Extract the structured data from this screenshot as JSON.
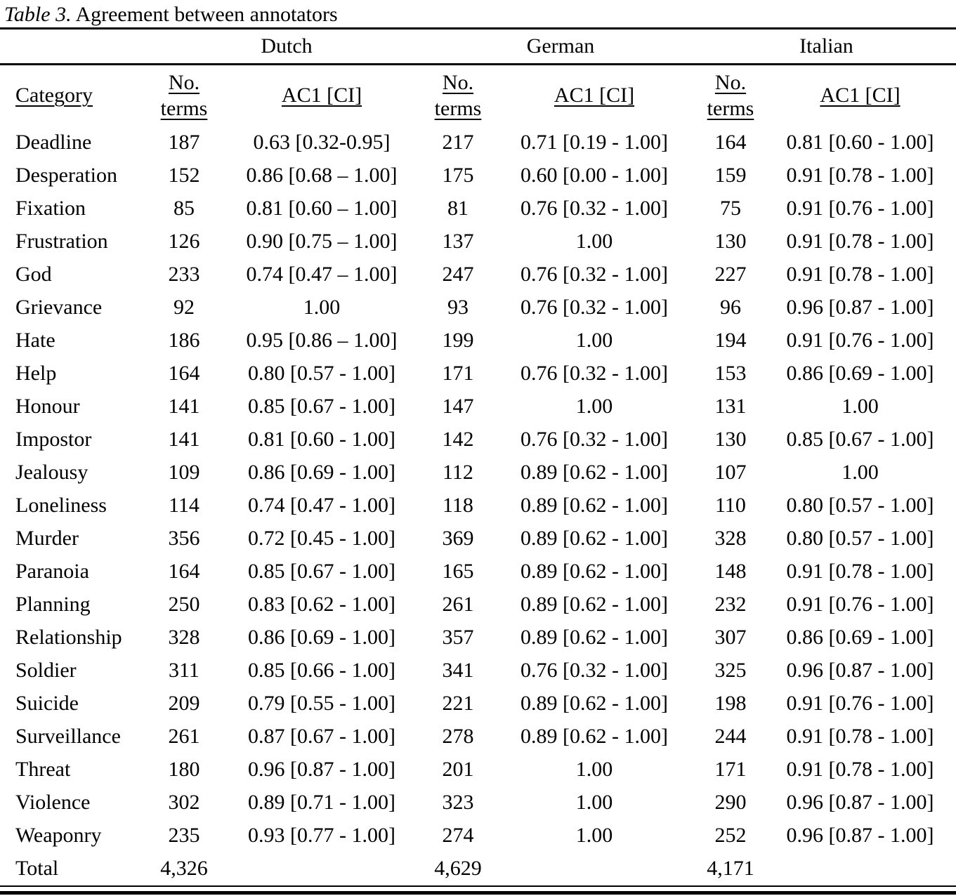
{
  "title": {
    "prefix": "Table 3.",
    "text": " Agreement between annotators"
  },
  "table": {
    "language_groups": [
      "Dutch",
      "German",
      "Italian"
    ],
    "headers": {
      "category": "Category",
      "no_terms": "No.\nterms",
      "ac1": "AC1 [CI]"
    },
    "rows": [
      {
        "category": "Deadline",
        "nl_terms": "187",
        "nl_ac1": "0.63 [0.32-0.95]",
        "de_terms": "217",
        "de_ac1": "0.71 [0.19 - 1.00]",
        "it_terms": "164",
        "it_ac1": "0.81 [0.60 - 1.00]"
      },
      {
        "category": "Desperation",
        "nl_terms": "152",
        "nl_ac1": "0.86 [0.68 – 1.00]",
        "de_terms": "175",
        "de_ac1": "0.60 [0.00 - 1.00]",
        "it_terms": "159",
        "it_ac1": "0.91 [0.78 - 1.00]"
      },
      {
        "category": "Fixation",
        "nl_terms": "85",
        "nl_ac1": "0.81 [0.60 – 1.00]",
        "de_terms": "81",
        "de_ac1": "0.76 [0.32 - 1.00]",
        "it_terms": "75",
        "it_ac1": "0.91 [0.76 - 1.00]"
      },
      {
        "category": "Frustration",
        "nl_terms": "126",
        "nl_ac1": "0.90 [0.75 – 1.00]",
        "de_terms": "137",
        "de_ac1": "1.00",
        "it_terms": "130",
        "it_ac1": "0.91 [0.78 - 1.00]"
      },
      {
        "category": "God",
        "nl_terms": "233",
        "nl_ac1": "0.74 [0.47 – 1.00]",
        "de_terms": "247",
        "de_ac1": "0.76 [0.32 - 1.00]",
        "it_terms": "227",
        "it_ac1": "0.91 [0.78 - 1.00]"
      },
      {
        "category": "Grievance",
        "nl_terms": "92",
        "nl_ac1": "1.00",
        "de_terms": "93",
        "de_ac1": "0.76 [0.32 - 1.00]",
        "it_terms": "96",
        "it_ac1": "0.96 [0.87 - 1.00]"
      },
      {
        "category": "Hate",
        "nl_terms": "186",
        "nl_ac1": "0.95 [0.86 – 1.00]",
        "de_terms": "199",
        "de_ac1": "1.00",
        "it_terms": "194",
        "it_ac1": "0.91 [0.76 - 1.00]"
      },
      {
        "category": "Help",
        "nl_terms": "164",
        "nl_ac1": "0.80 [0.57 - 1.00]",
        "de_terms": "171",
        "de_ac1": "0.76 [0.32 - 1.00]",
        "it_terms": "153",
        "it_ac1": "0.86 [0.69 - 1.00]"
      },
      {
        "category": "Honour",
        "nl_terms": "141",
        "nl_ac1": "0.85 [0.67 - 1.00]",
        "de_terms": "147",
        "de_ac1": "1.00",
        "it_terms": "131",
        "it_ac1": "1.00"
      },
      {
        "category": "Impostor",
        "nl_terms": "141",
        "nl_ac1": "0.81 [0.60 - 1.00]",
        "de_terms": "142",
        "de_ac1": "0.76 [0.32 - 1.00]",
        "it_terms": "130",
        "it_ac1": "0.85 [0.67 - 1.00]"
      },
      {
        "category": "Jealousy",
        "nl_terms": "109",
        "nl_ac1": "0.86 [0.69 - 1.00]",
        "de_terms": "112",
        "de_ac1": "0.89 [0.62 - 1.00]",
        "it_terms": "107",
        "it_ac1": "1.00"
      },
      {
        "category": "Loneliness",
        "nl_terms": "114",
        "nl_ac1": "0.74 [0.47 - 1.00]",
        "de_terms": "118",
        "de_ac1": "0.89 [0.62 - 1.00]",
        "it_terms": "110",
        "it_ac1": "0.80 [0.57 - 1.00]"
      },
      {
        "category": "Murder",
        "nl_terms": "356",
        "nl_ac1": "0.72 [0.45 - 1.00]",
        "de_terms": "369",
        "de_ac1": "0.89 [0.62 - 1.00]",
        "it_terms": "328",
        "it_ac1": "0.80 [0.57 - 1.00]"
      },
      {
        "category": "Paranoia",
        "nl_terms": "164",
        "nl_ac1": "0.85 [0.67 - 1.00]",
        "de_terms": "165",
        "de_ac1": "0.89 [0.62 - 1.00]",
        "it_terms": "148",
        "it_ac1": "0.91 [0.78 - 1.00]"
      },
      {
        "category": "Planning",
        "nl_terms": "250",
        "nl_ac1": "0.83 [0.62 - 1.00]",
        "de_terms": "261",
        "de_ac1": "0.89 [0.62 - 1.00]",
        "it_terms": "232",
        "it_ac1": "0.91 [0.76 - 1.00]"
      },
      {
        "category": "Relationship",
        "nl_terms": "328",
        "nl_ac1": "0.86 [0.69 - 1.00]",
        "de_terms": "357",
        "de_ac1": "0.89 [0.62 - 1.00]",
        "it_terms": "307",
        "it_ac1": "0.86 [0.69 - 1.00]"
      },
      {
        "category": "Soldier",
        "nl_terms": "311",
        "nl_ac1": "0.85 [0.66 - 1.00]",
        "de_terms": "341",
        "de_ac1": "0.76 [0.32 - 1.00]",
        "it_terms": "325",
        "it_ac1": "0.96 [0.87 - 1.00]"
      },
      {
        "category": "Suicide",
        "nl_terms": "209",
        "nl_ac1": "0.79 [0.55 - 1.00]",
        "de_terms": "221",
        "de_ac1": "0.89 [0.62 - 1.00]",
        "it_terms": "198",
        "it_ac1": "0.91 [0.76 - 1.00]"
      },
      {
        "category": "Surveillance",
        "nl_terms": "261",
        "nl_ac1": "0.87 [0.67 - 1.00]",
        "de_terms": "278",
        "de_ac1": "0.89 [0.62 - 1.00]",
        "it_terms": "244",
        "it_ac1": "0.91 [0.78 - 1.00]"
      },
      {
        "category": "Threat",
        "nl_terms": "180",
        "nl_ac1": "0.96 [0.87 - 1.00]",
        "de_terms": "201",
        "de_ac1": "1.00",
        "it_terms": "171",
        "it_ac1": "0.91 [0.78 - 1.00]"
      },
      {
        "category": "Violence",
        "nl_terms": "302",
        "nl_ac1": "0.89 [0.71 - 1.00]",
        "de_terms": "323",
        "de_ac1": "1.00",
        "it_terms": "290",
        "it_ac1": "0.96 [0.87 - 1.00]"
      },
      {
        "category": "Weaponry",
        "nl_terms": "235",
        "nl_ac1": "0.93 [0.77 - 1.00]",
        "de_terms": "274",
        "de_ac1": "1.00",
        "it_terms": "252",
        "it_ac1": "0.96 [0.87 - 1.00]"
      }
    ],
    "total": {
      "category": "Total",
      "nl_terms": "4,326",
      "de_terms": "4,629",
      "it_terms": "4,171"
    }
  }
}
